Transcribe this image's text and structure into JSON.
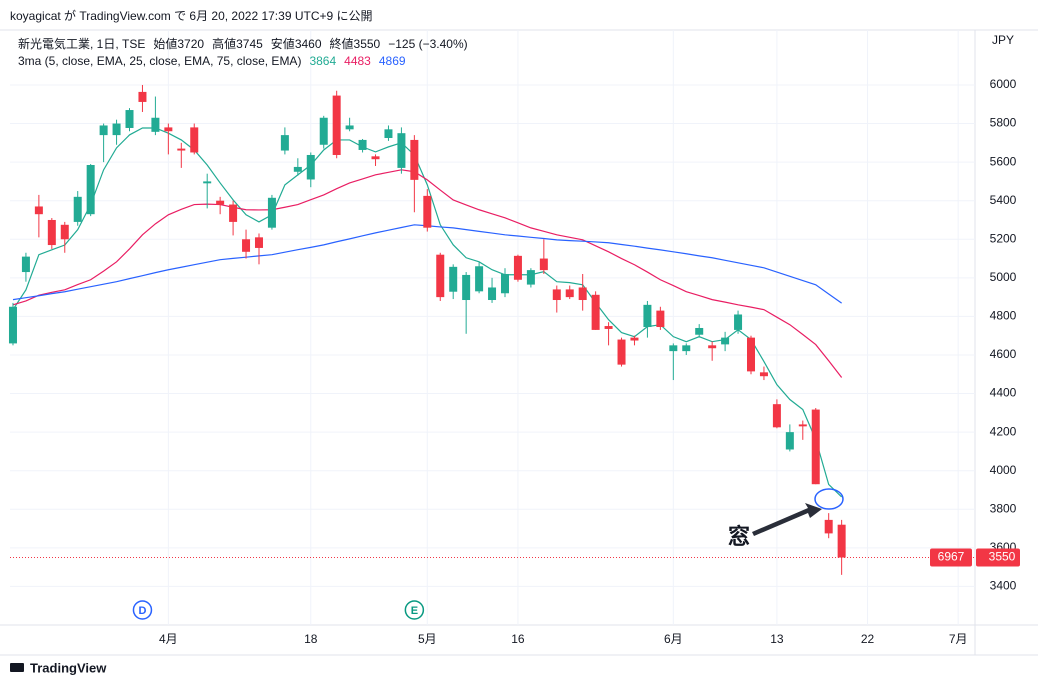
{
  "banner": "koyagicat が TradingView.com で 6月 20, 2022 17:39 UTC+9 に公開",
  "footer": "TradingView",
  "chart_data": {
    "type": "candlestick",
    "title": "新光電気工業, 1日, TSE",
    "ohlc_labels": [
      "始値",
      "高値",
      "安値",
      "終値"
    ],
    "change": "−125 (−3.40%)",
    "currency": "JPY",
    "open": [
      4660,
      5030,
      5370,
      5300,
      5275,
      5290,
      5330,
      5740,
      5740,
      5777,
      5964,
      5757,
      5780,
      5670,
      5780,
      5490,
      5400,
      5380,
      5200,
      5210,
      5260,
      5660,
      5550,
      5510,
      5690,
      5945,
      5770,
      5663,
      5630,
      5725,
      5570,
      5715,
      5425,
      5120,
      4928,
      4885,
      4930,
      4885,
      4920,
      5114,
      4965,
      5100,
      4940,
      4940,
      4950,
      4912,
      4750,
      4680,
      4690,
      4745,
      4830,
      4620,
      4620,
      4705,
      4650,
      4655,
      4730,
      4690,
      4510,
      4345,
      4110,
      4240,
      4317,
      3745,
      3720
    ],
    "high": [
      4870,
      5130,
      5430,
      5310,
      5290,
      5450,
      5590,
      5800,
      5820,
      5880,
      6000,
      5940,
      5800,
      5700,
      5800,
      5540,
      5420,
      5400,
      5250,
      5230,
      5430,
      5780,
      5620,
      5650,
      5840,
      5970,
      5830,
      5720,
      5640,
      5790,
      5780,
      5740,
      5460,
      5130,
      5070,
      5030,
      5080,
      5000,
      5050,
      5120,
      5050,
      5200,
      4960,
      4960,
      5020,
      4930,
      4770,
      4690,
      4700,
      4880,
      4850,
      4660,
      4660,
      4760,
      4670,
      4720,
      4830,
      4700,
      4540,
      4370,
      4240,
      4260,
      4325,
      3780,
      3745
    ],
    "low": [
      4650,
      4980,
      5210,
      5150,
      5130,
      5270,
      5320,
      5600,
      5690,
      5760,
      5860,
      5740,
      5640,
      5570,
      5640,
      5360,
      5330,
      5220,
      5100,
      5070,
      5250,
      5640,
      5530,
      5470,
      5670,
      5620,
      5760,
      5650,
      5580,
      5710,
      5540,
      5340,
      5240,
      4880,
      4890,
      4710,
      4920,
      4870,
      4900,
      4980,
      4950,
      5020,
      4820,
      4890,
      4830,
      4730,
      4650,
      4540,
      4650,
      4690,
      4730,
      4470,
      4600,
      4690,
      4570,
      4620,
      4710,
      4500,
      4470,
      4220,
      4100,
      4160,
      3930,
      3650,
      3460
    ],
    "close": [
      4850,
      5110,
      5330,
      5170,
      5200,
      5420,
      5585,
      5790,
      5800,
      5870,
      5912,
      5830,
      5760,
      5660,
      5650,
      5500,
      5380,
      5290,
      5135,
      5155,
      5415,
      5740,
      5575,
      5637,
      5830,
      5637,
      5790,
      5715,
      5615,
      5770,
      5750,
      5508,
      5260,
      4900,
      5057,
      5015,
      5060,
      4950,
      5020,
      4990,
      5040,
      5040,
      4885,
      4900,
      4885,
      4730,
      4735,
      4550,
      4675,
      4860,
      4745,
      4650,
      4650,
      4740,
      4635,
      4690,
      4810,
      4515,
      4490,
      4225,
      4200,
      4230,
      3930,
      3675,
      3550
    ],
    "up_color": "#22ab94",
    "down_color": "#f23645",
    "indicator": {
      "name": "3ma (5, close, EMA, 25, close, EMA, 75, close, EMA)",
      "series": [
        {
          "color": "#22ab94",
          "values": [
            4835,
            4938,
            5120,
            5145,
            5170,
            5250,
            5380,
            5560,
            5674,
            5741,
            5777,
            5777,
            5750,
            5715,
            5663,
            5585,
            5492,
            5404,
            5327,
            5290,
            5327,
            5482,
            5534,
            5585,
            5663,
            5715,
            5715,
            5679,
            5653,
            5679,
            5700,
            5637,
            5482,
            5275,
            5171,
            5104,
            5083,
            5042,
            5016,
            5016,
            5016,
            5032,
            4980,
            4975,
            4964,
            4871,
            4783,
            4716,
            4695,
            4747,
            4757,
            4695,
            4669,
            4695,
            4669,
            4680,
            4731,
            4680,
            4566,
            4446,
            4369,
            4317,
            4162,
            3929,
            3864
          ]
        },
        {
          "color": "#e91e63",
          "values": [
            4860,
            4880,
            4910,
            4925,
            4938,
            4965,
            4990,
            5035,
            5083,
            5150,
            5223,
            5280,
            5327,
            5355,
            5380,
            5382,
            5380,
            5366,
            5353,
            5352,
            5353,
            5366,
            5380,
            5405,
            5430,
            5462,
            5492,
            5513,
            5534,
            5547,
            5560,
            5550,
            5508,
            5455,
            5404,
            5378,
            5353,
            5332,
            5311,
            5285,
            5259,
            5241,
            5223,
            5210,
            5197,
            5166,
            5135,
            5100,
            5068,
            5030,
            4990,
            4960,
            4928,
            4908,
            4887,
            4874,
            4860,
            4848,
            4835,
            4796,
            4757,
            4706,
            4654,
            4570,
            4483
          ]
        },
        {
          "color": "#2962ff",
          "values": [
            4887,
            4897,
            4907,
            4918,
            4928,
            4941,
            4954,
            4967,
            4980,
            4996,
            5011,
            5027,
            5042,
            5055,
            5068,
            5081,
            5094,
            5101,
            5107,
            5114,
            5120,
            5133,
            5146,
            5158,
            5171,
            5187,
            5202,
            5218,
            5233,
            5247,
            5261,
            5275,
            5270,
            5264,
            5259,
            5250,
            5241,
            5232,
            5223,
            5217,
            5210,
            5204,
            5197,
            5193,
            5190,
            5186,
            5182,
            5173,
            5164,
            5154,
            5145,
            5135,
            5125,
            5114,
            5104,
            5091,
            5078,
            5065,
            5052,
            5030,
            5008,
            4986,
            4964,
            4916,
            4869
          ]
        }
      ]
    },
    "xlim": [
      -0.23,
      74.3
    ],
    "xticks": [
      {
        "value": 12,
        "label": "4月"
      },
      {
        "value": 23,
        "label": "18"
      },
      {
        "value": 32,
        "label": "5月"
      },
      {
        "value": 39,
        "label": "16"
      },
      {
        "value": 51,
        "label": "6月"
      },
      {
        "value": 59,
        "label": "13"
      },
      {
        "value": 66,
        "label": "22"
      },
      {
        "value": 73,
        "label": "7月"
      }
    ],
    "ylim": [
      3200,
      6285
    ],
    "yticks": [
      3400,
      3600,
      3800,
      4000,
      4200,
      4400,
      4600,
      4800,
      5000,
      5200,
      5400,
      5600,
      5800,
      6000
    ],
    "grid": true,
    "events": [
      {
        "label": "D",
        "x": 10,
        "color": "#2962ff"
      },
      {
        "label": "E",
        "x": 31,
        "color": "#089981"
      }
    ],
    "price_labels": [
      "6967"
    ],
    "annotation": "窓"
  }
}
